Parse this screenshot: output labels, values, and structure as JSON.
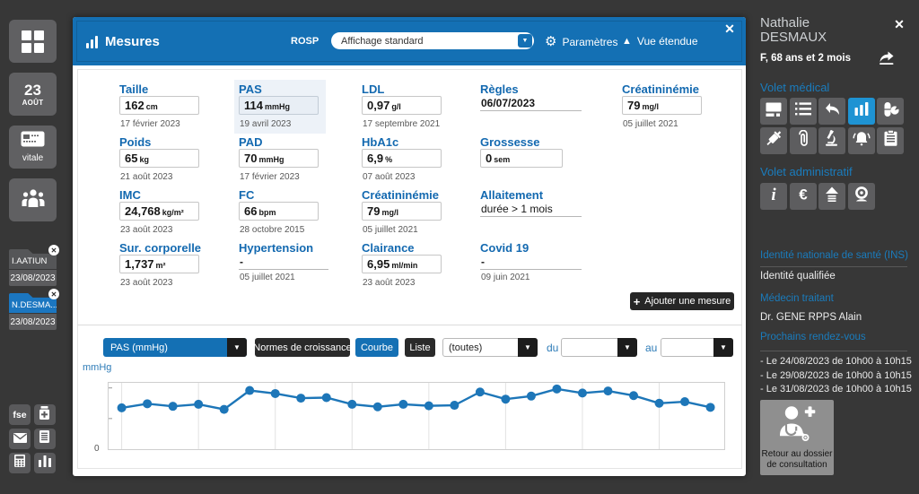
{
  "colors": {
    "background": "#373737",
    "accent_blue": "#1470b4",
    "active_icon_blue": "#1e93d3",
    "label_blue": "#1369b0",
    "sidebar_heading_blue": "#1a7cbd",
    "chart_line": "#1d76b8",
    "dark_button": "#262626"
  },
  "left_sidebar": {
    "date_button": {
      "day": "23",
      "month": "AOÛT"
    },
    "vitale_label": "vitale",
    "fse_label": "fse",
    "icons": [
      "tiles-icon",
      "calendar-date",
      "vitale-card-icon",
      "people-icon"
    ],
    "mini_icons": [
      "fse",
      "medicine-jar-icon",
      "mail-icon",
      "document-icon",
      "calculator-icon",
      "bar-chart-icon"
    ],
    "patient_tabs": [
      {
        "name": "I.AATIUN",
        "date": "23/08/2023",
        "active": false
      },
      {
        "name": "N.DESMA...",
        "date": "23/08/2023",
        "active": true
      }
    ]
  },
  "panel": {
    "title": "Mesures",
    "rosp_label": "ROSP",
    "display_select_value": "Affichage standard",
    "params_label": "Paramètres",
    "extended_view_label": "Vue étendue",
    "close_glyph": "✕",
    "add_button_label": "Ajouter une mesure",
    "add_button_plus": "+"
  },
  "measurements": [
    {
      "label": "Taille",
      "value": "162",
      "unit": "cm",
      "date": "17 février 2023",
      "col": 0,
      "row": 0,
      "variant": "box"
    },
    {
      "label": "Poids",
      "value": "65",
      "unit": "kg",
      "date": "21 août 2023",
      "col": 0,
      "row": 1,
      "variant": "box"
    },
    {
      "label": "IMC",
      "value": "24,768",
      "unit": "kg/m²",
      "date": "23 août 2023",
      "col": 0,
      "row": 2,
      "variant": "box"
    },
    {
      "label": "Sur. corporelle",
      "value": "1,737",
      "unit": "m²",
      "date": "23 août 2023",
      "col": 0,
      "row": 3,
      "variant": "box"
    },
    {
      "label": "PAS",
      "value": "114",
      "unit": "mmHg",
      "date": "19 avril 2023",
      "col": 1,
      "row": 0,
      "variant": "box",
      "highlight": true
    },
    {
      "label": "PAD",
      "value": "70",
      "unit": "mmHg",
      "date": "17 février 2023",
      "col": 1,
      "row": 1,
      "variant": "box"
    },
    {
      "label": "FC",
      "value": "66",
      "unit": "bpm",
      "date": "28 octobre 2015",
      "col": 1,
      "row": 2,
      "variant": "box"
    },
    {
      "label": "Hypertension",
      "value": "-",
      "unit": "",
      "date": "05 juillet 2021",
      "col": 1,
      "row": 3,
      "variant": "underline",
      "bold": true
    },
    {
      "label": "LDL",
      "value": "0,97",
      "unit": "g/l",
      "date": "17 septembre 2021",
      "col": 2,
      "row": 0,
      "variant": "box"
    },
    {
      "label": "HbA1c",
      "value": "6,9",
      "unit": "%",
      "date": "07 août 2023",
      "col": 2,
      "row": 1,
      "variant": "box"
    },
    {
      "label": "Créatininémie",
      "value": "79",
      "unit": "mg/l",
      "date": "05 juillet 2021",
      "col": 2,
      "row": 2,
      "variant": "box"
    },
    {
      "label": "Clairance",
      "value": "6,95",
      "unit": "ml/min",
      "date": "23 août 2023",
      "col": 2,
      "row": 3,
      "variant": "box"
    },
    {
      "label": "Règles",
      "value": "06/07/2023",
      "unit": "",
      "date": "",
      "col": 3,
      "row": 0,
      "variant": "underline",
      "bold": true
    },
    {
      "label": "Grossesse",
      "value": "0",
      "unit": "sem",
      "date": "",
      "col": 3,
      "row": 1,
      "variant": "box",
      "boxw": 92
    },
    {
      "label": "Allaitement",
      "value": "durée > 1 mois",
      "unit": "",
      "date": "",
      "col": 3,
      "row": 2,
      "variant": "underline",
      "bold": false
    },
    {
      "label": "Covid 19",
      "value": "-",
      "unit": "",
      "date": "09 juin 2021",
      "col": 3,
      "row": 3,
      "variant": "underline",
      "bold": true
    },
    {
      "label": "Créatininémie",
      "value": "79",
      "unit": "mg/l",
      "date": "05 juillet 2021",
      "col": 4,
      "row": 0,
      "variant": "box"
    }
  ],
  "chart_controls": {
    "series_select_value": "PAS (mmHg)",
    "growth_norms_label": "Normes de croissance",
    "curve_label": "Courbe",
    "list_label": "Liste",
    "period_select_value": "(toutes)",
    "from_label": "du",
    "to_label": "au"
  },
  "chart_data": {
    "type": "line",
    "title": "PAS (mmHg)",
    "ylabel": "mmHg",
    "y_zero_label": "0",
    "ylim": [
      0,
      130
    ],
    "grid": "vertical-every-3-points",
    "legend": "none",
    "values": [
      81,
      89,
      84,
      88,
      78,
      115,
      109,
      100,
      101,
      88,
      83,
      88,
      85,
      86,
      112,
      98,
      104,
      118,
      110,
      114,
      105,
      90,
      93,
      82
    ],
    "line_color": "#1d76b8"
  },
  "right_sidebar": {
    "first_name": "Nathalie",
    "last_name": "DESMAUX",
    "demographics": "F, 68 ans et 2 mois",
    "close_glyph": "✕",
    "medical_section_title": "Volet médical",
    "medical_icons": [
      "card-display-icon",
      "bullet-list-icon",
      "undo-icon",
      "bar-chart-icon",
      "medication-icon",
      "syringe-icon",
      "paperclip-icon",
      "microscope-icon",
      "bell-icon",
      "clipboard-icon"
    ],
    "medical_active_icon": "bar-chart-icon",
    "admin_section_title": "Volet administratif",
    "admin_icons": [
      "info-icon",
      "euro-icon",
      "upload-icon",
      "webcam-icon"
    ],
    "info_sections": [
      {
        "title": "Identité nationale de santé (INS)",
        "rule": true,
        "items": [
          "Identité qualifiée"
        ]
      },
      {
        "title": "Médecin traitant",
        "rule": false,
        "items": [
          "Dr. GENE RPPS Alain"
        ]
      },
      {
        "title": "Prochains rendez-vous",
        "rule": true,
        "items": [
          "- Le 24/08/2023 de 10h00 à 10h15",
          "- Le 29/08/2023 de 10h00 à 10h15",
          "- Le 31/08/2023 de 10h00 à 10h15"
        ]
      }
    ],
    "return_button_lines": [
      "Retour au dossier",
      "de consultation"
    ]
  }
}
